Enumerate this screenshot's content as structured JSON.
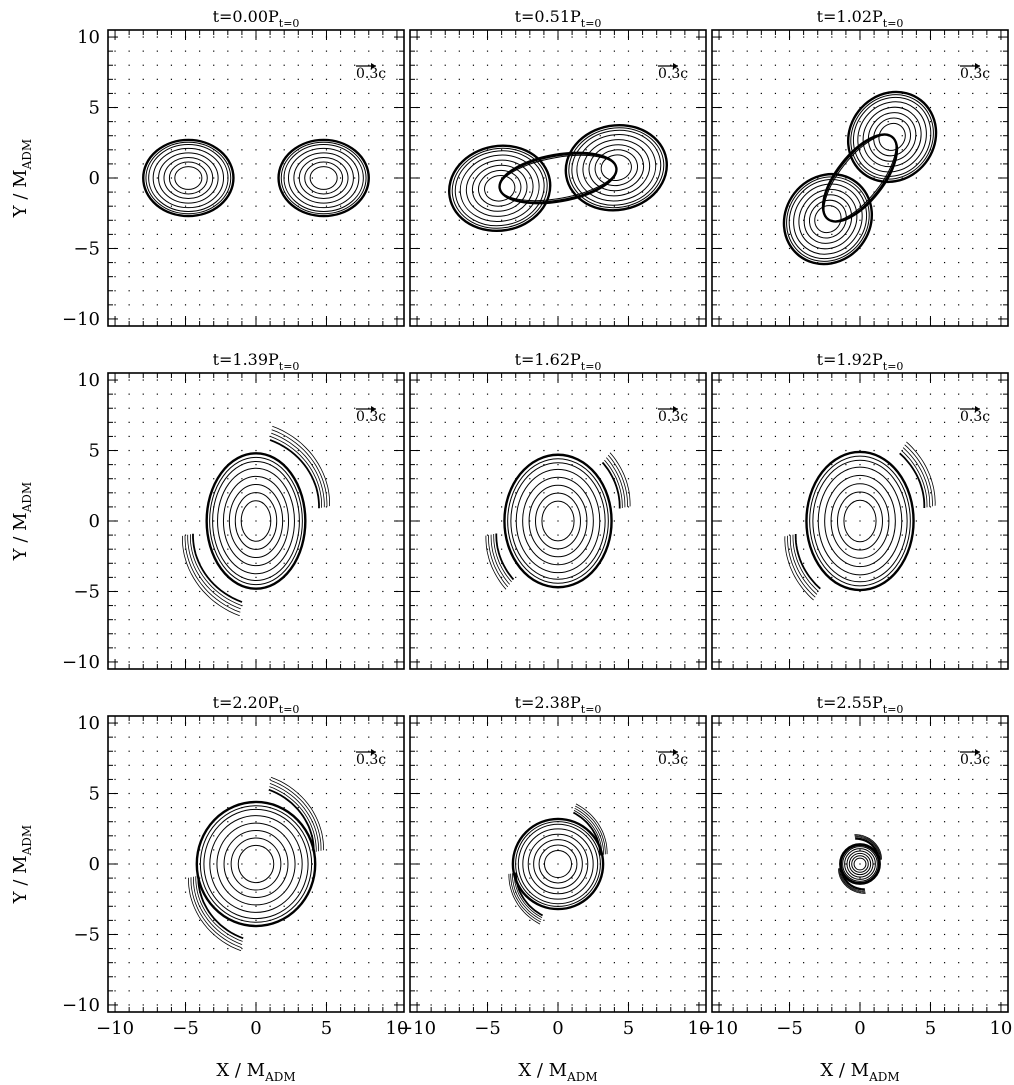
{
  "chart_data": {
    "type": "contour",
    "layout": "3x3 panel grid",
    "xlabel": "X / M",
    "xlabel_sub": "ADM",
    "ylabel": "Y / M",
    "ylabel_sub": "ADM",
    "xlim": [
      -10.5,
      10.5
    ],
    "ylim": [
      -10.5,
      10.5
    ],
    "xticks": [
      -10,
      -5,
      0,
      5,
      10
    ],
    "yticks": [
      -10,
      -5,
      0,
      5,
      10
    ],
    "xtick_labels": [
      "−10",
      "−5",
      "0",
      "5",
      "10"
    ],
    "ytick_labels": [
      "−10",
      "−5",
      "0",
      "5",
      "10"
    ],
    "velocity_scale_label": "0.3c",
    "grid": "dotted",
    "line_color": "#000000",
    "panels": [
      {
        "time": "t=0.00P",
        "time_sub": "t=0",
        "shape": "binary",
        "rx": 3.2,
        "ry": 2.7,
        "sep": 4.8,
        "angle": 0,
        "spiral": 0
      },
      {
        "time": "t=0.51P",
        "time_sub": "t=0",
        "shape": "contact",
        "rx": 3.6,
        "ry": 3.0,
        "sep": 4.2,
        "angle": 10,
        "spiral": 0
      },
      {
        "time": "t=1.02P",
        "time_sub": "t=0",
        "shape": "contact",
        "rx": 3.3,
        "ry": 3.0,
        "sep": 3.7,
        "angle": 52,
        "spiral": 0
      },
      {
        "time": "t=1.39P",
        "time_sub": "t=0",
        "shape": "merged",
        "rx": 3.5,
        "ry": 4.8,
        "sep": 0,
        "angle": 0,
        "spiral": 1.0
      },
      {
        "time": "t=1.62P",
        "time_sub": "t=0",
        "shape": "merged",
        "rx": 3.8,
        "ry": 4.7,
        "sep": 0,
        "angle": 0,
        "spiral": 0.6
      },
      {
        "time": "t=1.92P",
        "time_sub": "t=0",
        "shape": "merged",
        "rx": 3.8,
        "ry": 4.9,
        "sep": 0,
        "angle": 0,
        "spiral": 0.7
      },
      {
        "time": "t=2.20P",
        "time_sub": "t=0",
        "shape": "merged",
        "rx": 4.2,
        "ry": 4.4,
        "sep": 0,
        "angle": 0,
        "spiral": 1.0
      },
      {
        "time": "t=2.38P",
        "time_sub": "t=0",
        "shape": "merged",
        "rx": 3.2,
        "ry": 3.2,
        "sep": 0,
        "angle": 0,
        "spiral": 0.9
      },
      {
        "time": "t=2.55P",
        "time_sub": "t=0",
        "shape": "merged",
        "rx": 1.4,
        "ry": 1.4,
        "sep": 0,
        "angle": 0,
        "spiral": 1.3
      }
    ]
  }
}
